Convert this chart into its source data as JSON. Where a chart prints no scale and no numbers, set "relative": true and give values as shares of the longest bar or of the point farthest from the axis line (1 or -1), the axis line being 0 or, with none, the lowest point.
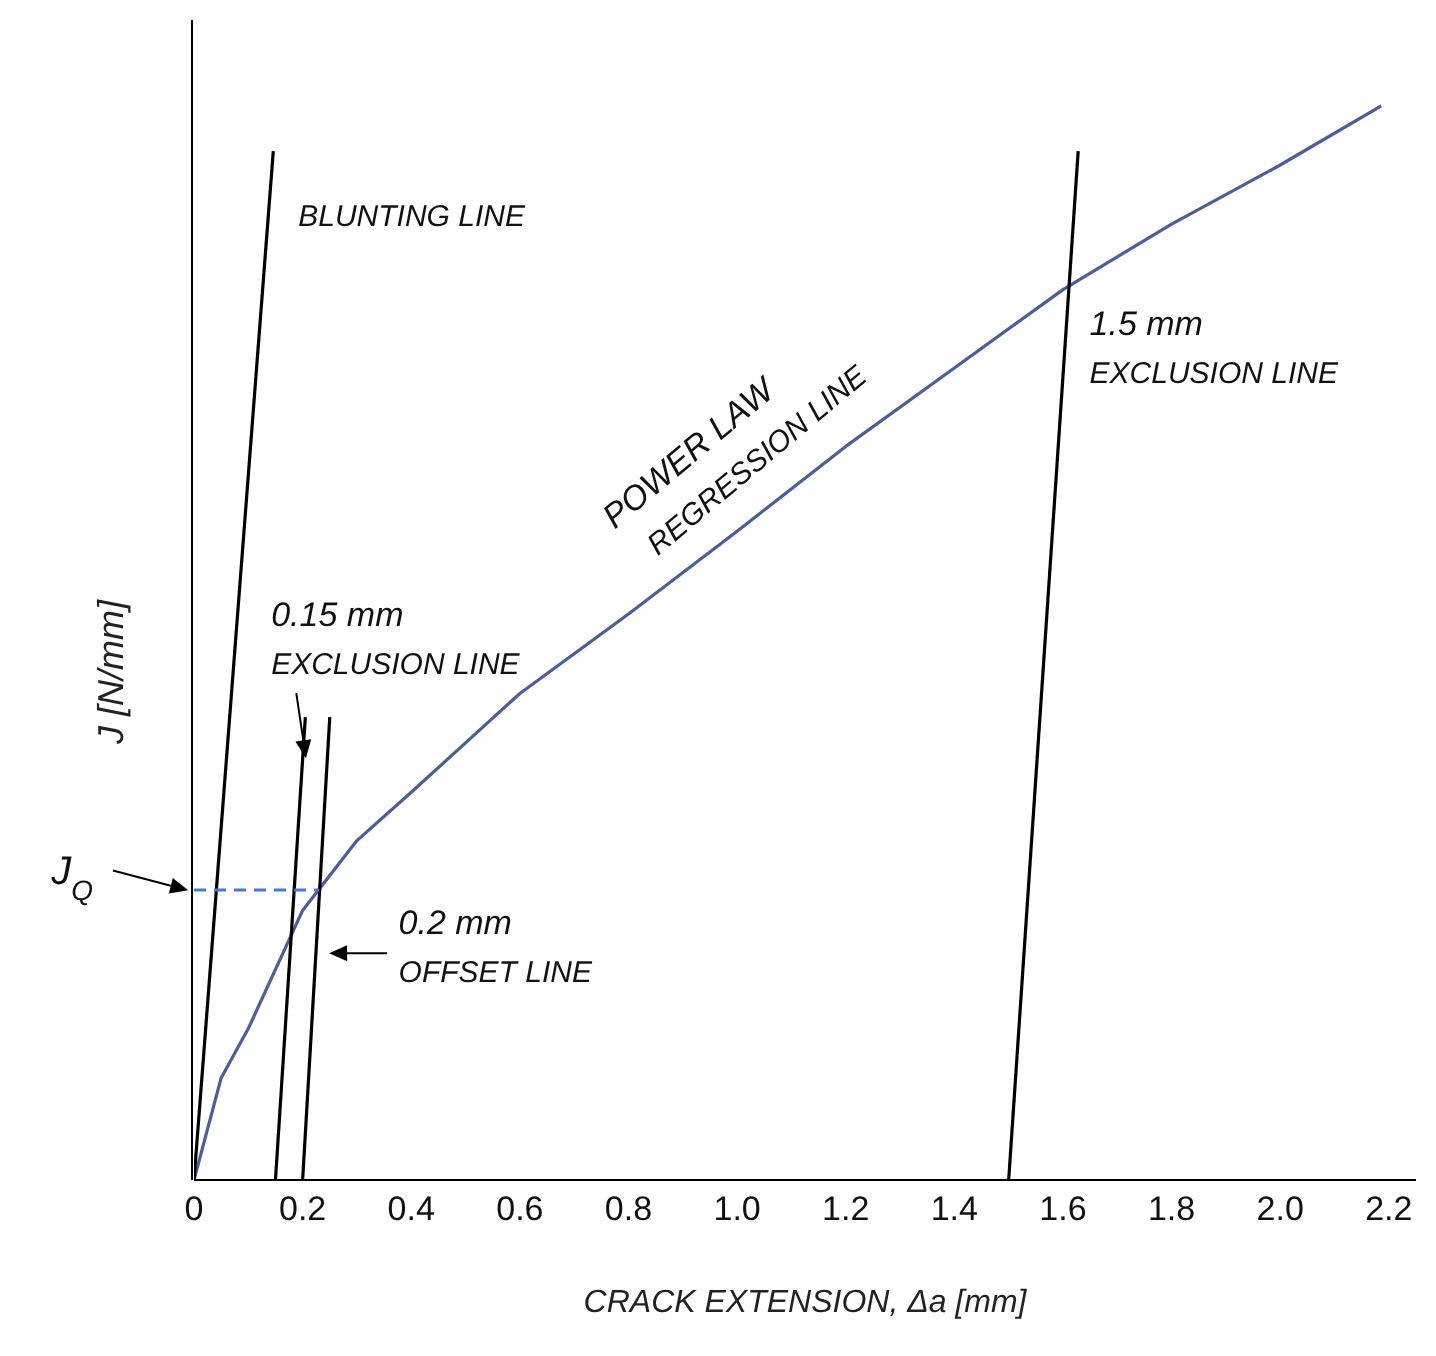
{
  "chart_data": {
    "type": "line",
    "relative": true,
    "xlabel": "CRACK EXTENSION,  Δa [mm]",
    "ylabel": "J [N/mm]",
    "xlim": [
      0,
      2.25
    ],
    "xticks": [
      0,
      0.2,
      0.4,
      0.6,
      0.8,
      {
        "value": 1,
        "label": "1.0"
      },
      1.2,
      1.4,
      1.6,
      1.8,
      {
        "value": 2,
        "label": "2.0"
      },
      2.2
    ],
    "grid": false,
    "marker": "none",
    "series": [
      {
        "color": "#4b5e9c",
        "x": [
          0,
          0.05,
          0.1,
          0.2,
          0.3,
          0.4,
          0.6,
          0.8,
          1,
          1.2,
          1.4,
          1.6,
          1.8,
          2,
          2.186
        ],
        "values": [
          0,
          0.095,
          0.141,
          0.251,
          0.316,
          0.361,
          0.453,
          0.527,
          0.604,
          0.683,
          0.756,
          0.829,
          0.89,
          0.945,
          1
        ]
      },
      {
        "color": "#000000",
        "x": [
          0,
          0.146
        ],
        "values": [
          0,
          0.958
        ]
      },
      {
        "color": "#000000",
        "x": [
          0.15,
          0.205
        ],
        "values": [
          0,
          0.431
        ]
      },
      {
        "color": "#000000",
        "x": [
          0.2,
          0.25
        ],
        "values": [
          0,
          0.431
        ]
      },
      {
        "color": "#000000",
        "x": [
          1.5,
          1.628
        ],
        "values": [
          0,
          0.958
        ]
      },
      {
        "color": "#4b78d8",
        "line_style": "dashed",
        "x": [
          0,
          0.23
        ],
        "values": [
          0.27,
          0.27
        ]
      }
    ],
    "annotations": [
      "BLUNTING LINE",
      "POWER LAW REGRESSION LINE",
      "0.15 mm EXCLUSION LINE",
      "0.2 mm OFFSET LINE",
      "1.5 mm EXCLUSION LINE",
      "J$_{Q}$"
    ]
  }
}
